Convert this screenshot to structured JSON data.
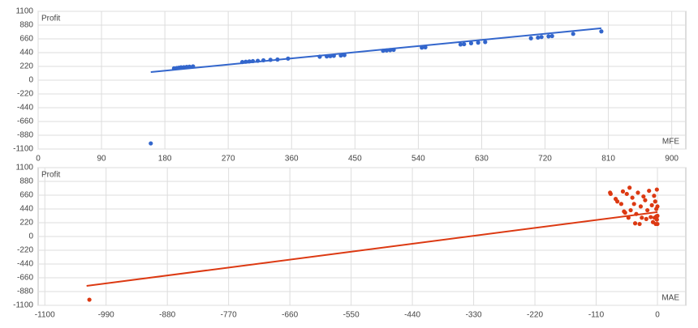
{
  "chart_data": [
    {
      "type": "scatter",
      "y_label": "Profit",
      "x_label": "MFE",
      "color": "#3366cc",
      "grid": true,
      "xlim": [
        0,
        920
      ],
      "xticks": [
        0,
        90,
        180,
        270,
        360,
        450,
        540,
        630,
        720,
        810,
        900
      ],
      "ylim": [
        -1100,
        1100
      ],
      "yticks": [
        1100,
        880,
        660,
        440,
        220,
        0,
        -220,
        -440,
        -660,
        -880,
        -1100
      ],
      "x": [
        160,
        193,
        197,
        200,
        203,
        207,
        211,
        215,
        220,
        290,
        295,
        300,
        305,
        312,
        320,
        330,
        340,
        355,
        400,
        410,
        415,
        420,
        430,
        435,
        490,
        495,
        500,
        505,
        545,
        550,
        600,
        605,
        615,
        625,
        635,
        700,
        710,
        715,
        725,
        730,
        760,
        800
      ],
      "values": [
        -1010,
        190,
        195,
        200,
        205,
        208,
        212,
        215,
        220,
        290,
        295,
        300,
        305,
        310,
        318,
        325,
        330,
        345,
        375,
        380,
        385,
        390,
        395,
        400,
        470,
        475,
        480,
        485,
        520,
        525,
        570,
        575,
        590,
        600,
        610,
        670,
        680,
        690,
        700,
        705,
        740,
        780
      ],
      "trendline": {
        "x": [
          160,
          800
        ],
        "values": [
          129,
          830
        ]
      }
    },
    {
      "type": "scatter",
      "y_label": "Profit",
      "x_label": "MAE",
      "color": "#dc3912",
      "grid": true,
      "xlim": [
        -1112,
        51
      ],
      "xticks": [
        -1100,
        -990,
        -880,
        -770,
        -660,
        -550,
        -440,
        -330,
        -220,
        -110,
        0
      ],
      "ylim": [
        -1100,
        1100
      ],
      "yticks": [
        1100,
        880,
        660,
        440,
        220,
        0,
        -220,
        -440,
        -660,
        -880,
        -1100
      ],
      "x": [
        -1020,
        -85,
        -84,
        -75,
        -72,
        -65,
        -62,
        -60,
        -58,
        -55,
        -52,
        -50,
        -48,
        -45,
        -42,
        -40,
        -38,
        -35,
        -32,
        -30,
        -28,
        -25,
        -22,
        -20,
        -18,
        -15,
        -12,
        -10,
        -8,
        -6,
        -5,
        -4,
        -3,
        -2,
        -2,
        -1,
        -1,
        0,
        0,
        0
      ],
      "values": [
        -1010,
        700,
        680,
        600,
        560,
        520,
        720,
        400,
        380,
        680,
        300,
        780,
        420,
        620,
        520,
        210,
        360,
        700,
        200,
        480,
        300,
        640,
        580,
        280,
        420,
        730,
        310,
        500,
        230,
        650,
        300,
        560,
        200,
        320,
        440,
        750,
        270,
        330,
        200,
        480
      ],
      "trendline": {
        "x": [
          -1025,
          0
        ],
        "values": [
          -790,
          390
        ]
      }
    }
  ]
}
